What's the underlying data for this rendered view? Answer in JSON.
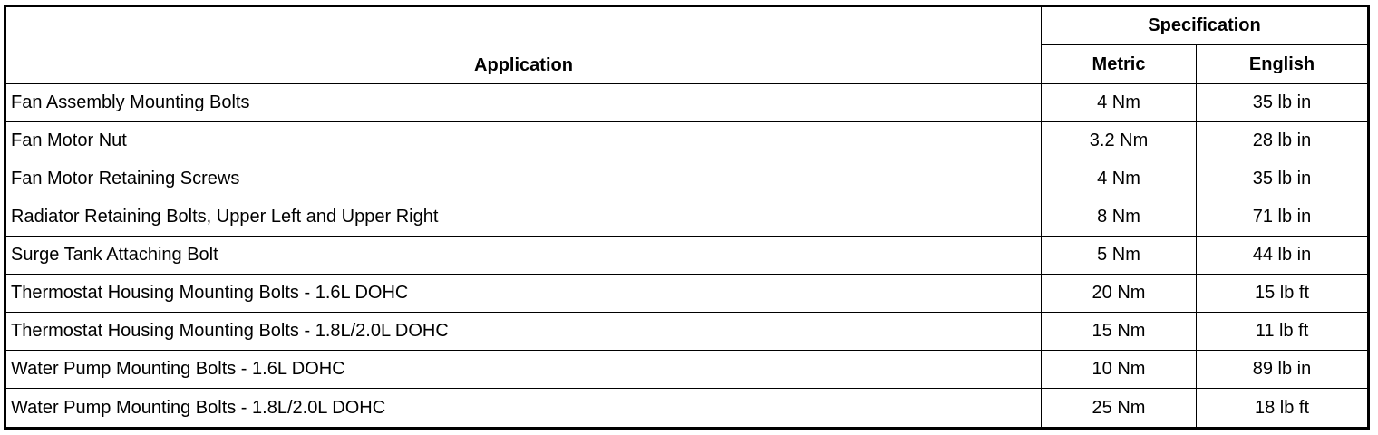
{
  "headers": {
    "application": "Application",
    "specification": "Specification",
    "metric": "Metric",
    "english": "English"
  },
  "rows": [
    {
      "application": "Fan Assembly Mounting Bolts",
      "metric": "4 Nm",
      "english": "35 lb in"
    },
    {
      "application": "Fan Motor Nut",
      "metric": "3.2 Nm",
      "english": "28 lb in"
    },
    {
      "application": "Fan Motor Retaining Screws",
      "metric": "4 Nm",
      "english": "35 lb in"
    },
    {
      "application": "Radiator Retaining Bolts, Upper Left and Upper Right",
      "metric": "8 Nm",
      "english": "71 lb in"
    },
    {
      "application": "Surge Tank Attaching Bolt",
      "metric": "5 Nm",
      "english": "44 lb in"
    },
    {
      "application": "Thermostat Housing Mounting Bolts - 1.6L DOHC",
      "metric": "20 Nm",
      "english": "15 lb ft"
    },
    {
      "application": "Thermostat Housing Mounting Bolts - 1.8L/2.0L DOHC",
      "metric": "15 Nm",
      "english": "11 lb ft"
    },
    {
      "application": "Water Pump Mounting Bolts - 1.6L DOHC",
      "metric": "10 Nm",
      "english": "89 lb in"
    },
    {
      "application": "Water Pump Mounting Bolts - 1.8L/2.0L DOHC",
      "metric": "25 Nm",
      "english": "18 lb ft"
    }
  ]
}
